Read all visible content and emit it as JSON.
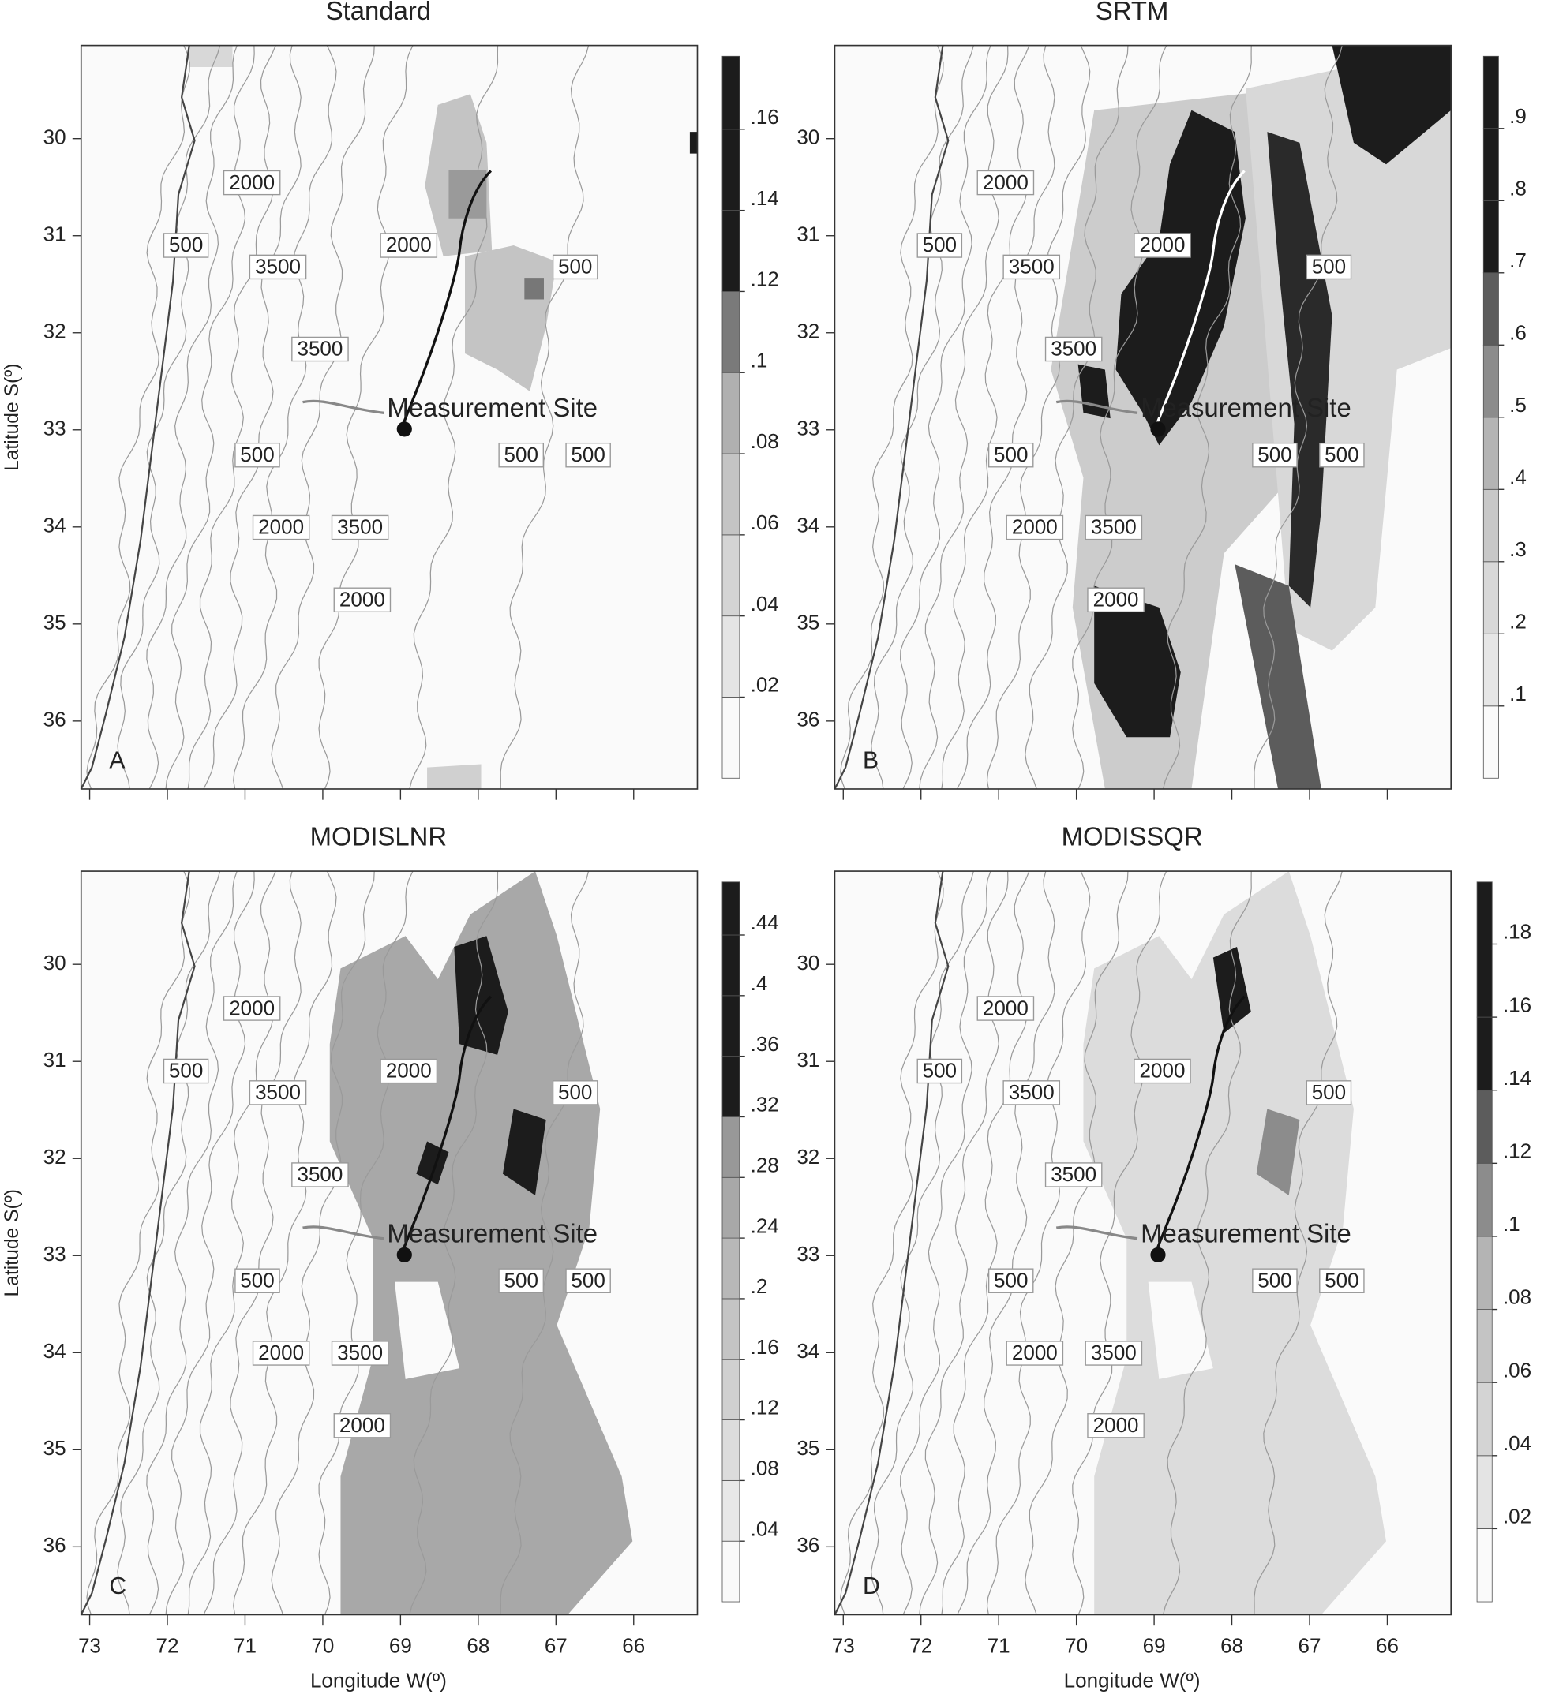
{
  "x_axis": {
    "label": "Longitude W(º)",
    "lim": [
      73.11,
      65.18
    ],
    "ticks": [
      73,
      72,
      71,
      70,
      69,
      68,
      67,
      66
    ]
  },
  "y_axis": {
    "label": "Latitude S(º)",
    "lim": [
      36.7,
      29.04
    ],
    "ticks": [
      30,
      31,
      32,
      33,
      34,
      35,
      36
    ]
  },
  "contour_labels": [
    "2000",
    "500",
    "3500",
    "2000",
    "500",
    "3500",
    "500",
    "500",
    "500",
    "2000",
    "3500",
    "2000"
  ],
  "site_label": "Measurement Site",
  "panels": [
    {
      "title": "Standard",
      "letter": "A",
      "colorbar": {
        "lim": [
          0,
          0.178
        ],
        "ticks": [
          {
            "value": 0.02,
            "label": ".02"
          },
          {
            "value": 0.04,
            "label": ".04"
          },
          {
            "value": 0.06,
            "label": ".06"
          },
          {
            "value": 0.08,
            "label": ".08"
          },
          {
            "value": 0.1,
            "label": ".1"
          },
          {
            "value": 0.12,
            "label": ".12"
          },
          {
            "value": 0.14,
            "label": ".14"
          },
          {
            "value": 0.16,
            "label": ".16"
          }
        ],
        "colors": [
          "#fafafa",
          "#e4e4e4",
          "#d4d4d4",
          "#c4c4c4",
          "#b0b0b0",
          "#7a7a7a",
          "#1c1c1c",
          "#1c1c1c",
          "#1c1c1c"
        ]
      }
    },
    {
      "title": "SRTM",
      "letter": "B",
      "colorbar": {
        "lim": [
          0,
          1
        ],
        "ticks": [
          {
            "value": 0.1,
            "label": ".1"
          },
          {
            "value": 0.2,
            "label": ".2"
          },
          {
            "value": 0.3,
            "label": ".3"
          },
          {
            "value": 0.4,
            "label": ".4"
          },
          {
            "value": 0.5,
            "label": ".5"
          },
          {
            "value": 0.6,
            "label": ".6"
          },
          {
            "value": 0.7,
            "label": ".7"
          },
          {
            "value": 0.8,
            "label": ".8"
          },
          {
            "value": 0.9,
            "label": ".9"
          }
        ],
        "colors": [
          "#fafafa",
          "#e6e6e6",
          "#d8d8d8",
          "#c8c8c8",
          "#b4b4b4",
          "#8c8c8c",
          "#5c5c5c",
          "#1c1c1c",
          "#1c1c1c",
          "#1c1c1c"
        ]
      }
    },
    {
      "title": "MODISLNR",
      "letter": "C",
      "colorbar": {
        "lim": [
          0,
          0.475
        ],
        "ticks": [
          {
            "value": 0.04,
            "label": ".04"
          },
          {
            "value": 0.08,
            "label": ".08"
          },
          {
            "value": 0.12,
            "label": ".12"
          },
          {
            "value": 0.16,
            "label": ".16"
          },
          {
            "value": 0.2,
            "label": ".2"
          },
          {
            "value": 0.24,
            "label": ".24"
          },
          {
            "value": 0.28,
            "label": ".28"
          },
          {
            "value": 0.32,
            "label": ".32"
          },
          {
            "value": 0.36,
            "label": ".36"
          },
          {
            "value": 0.4,
            "label": ".4"
          },
          {
            "value": 0.44,
            "label": ".44"
          }
        ],
        "colors": [
          "#fafafa",
          "#e8e8e8",
          "#dcdcdc",
          "#d0d0d0",
          "#c4c4c4",
          "#b8b8b8",
          "#a8a8a8",
          "#989898",
          "#1c1c1c",
          "#1c1c1c",
          "#1c1c1c",
          "#1c1c1c"
        ]
      }
    },
    {
      "title": "MODISSQR",
      "letter": "D",
      "colorbar": {
        "lim": [
          0,
          0.197
        ],
        "ticks": [
          {
            "value": 0.02,
            "label": ".02"
          },
          {
            "value": 0.04,
            "label": ".04"
          },
          {
            "value": 0.06,
            "label": ".06"
          },
          {
            "value": 0.08,
            "label": ".08"
          },
          {
            "value": 0.1,
            "label": ".1"
          },
          {
            "value": 0.12,
            "label": ".12"
          },
          {
            "value": 0.14,
            "label": ".14"
          },
          {
            "value": 0.16,
            "label": ".16"
          },
          {
            "value": 0.18,
            "label": ".18"
          }
        ],
        "colors": [
          "#fafafa",
          "#e4e4e4",
          "#d4d4d4",
          "#c4c4c4",
          "#b4b4b4",
          "#8c8c8c",
          "#5c5c5c",
          "#1c1c1c",
          "#1c1c1c",
          "#1c1c1c"
        ]
      }
    }
  ]
}
